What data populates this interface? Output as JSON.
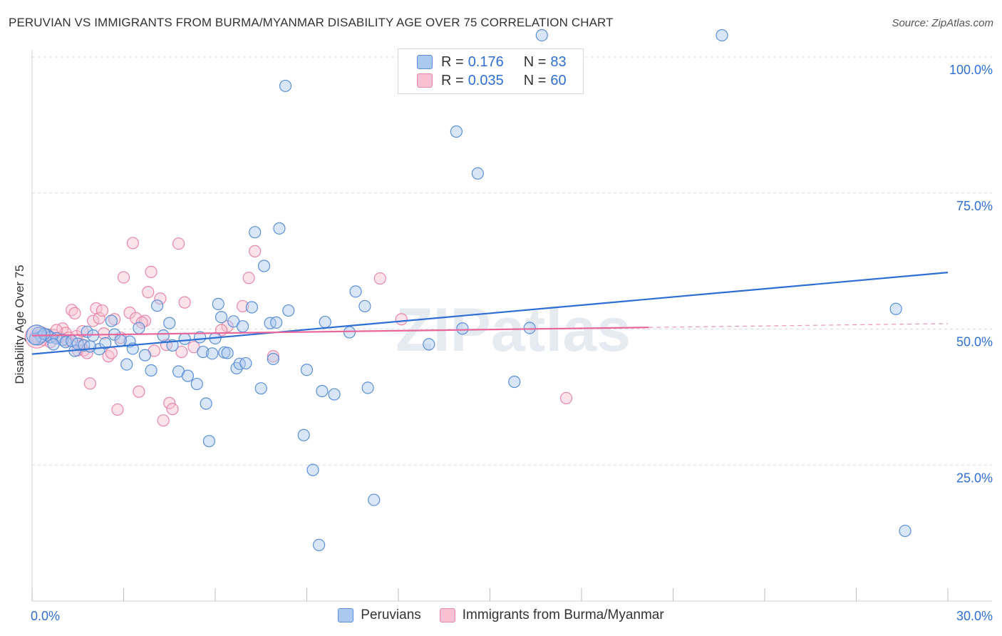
{
  "title": "PERUVIAN VS IMMIGRANTS FROM BURMA/MYANMAR DISABILITY AGE OVER 75 CORRELATION CHART",
  "source": "Source: ZipAtlas.com",
  "watermark": "ZIPatlas",
  "legend": {
    "r_label": "R =",
    "n_label": "N =",
    "rows": [
      {
        "r": "0.176",
        "n": "83",
        "fill": "#aac8f0",
        "stroke": "#5b8fd8"
      },
      {
        "r": "0.035",
        "n": "60",
        "fill": "#f8c0d0",
        "stroke": "#e888a8"
      }
    ]
  },
  "series_labels": [
    "Peruvians",
    "Immigrants from Burma/Myanmar"
  ],
  "chart_data": {
    "type": "scatter",
    "title": "PERUVIAN VS IMMIGRANTS FROM BURMA/MYANMAR DISABILITY AGE OVER 75 CORRELATION CHART",
    "xlabel": "",
    "ylabel": "Disability Age Over 75",
    "xlim": [
      0,
      30
    ],
    "ylim": [
      0,
      105
    ],
    "x_tick_labels": [
      "0.0%",
      "30.0%"
    ],
    "y_tick_labels": [
      "100.0%",
      "75.0%",
      "50.0%",
      "25.0%"
    ],
    "y_ticks": [
      100,
      75,
      50,
      25
    ],
    "grid": true,
    "colors": {
      "blue_fill": "#aac8f0",
      "blue_stroke": "#5b8fd8",
      "blue_line": "#2f6fd4",
      "pink_fill": "#f8c0d0",
      "pink_stroke": "#e888a8",
      "pink_line": "#e8679a",
      "tick_text": "#2f6fd4"
    },
    "series": [
      {
        "name": "Peruvians",
        "trend": {
          "x": [
            0,
            30
          ],
          "y": [
            45.4,
            60.4
          ]
        },
        "points": [
          [
            0.2,
            49.3
          ],
          [
            0.3,
            48.6
          ],
          [
            0.5,
            48.9
          ],
          [
            0.6,
            48.5
          ],
          [
            0.8,
            48.3
          ],
          [
            1.0,
            48.0
          ],
          [
            1.1,
            47.6
          ],
          [
            1.3,
            47.8
          ],
          [
            1.4,
            46.0
          ],
          [
            1.5,
            47.3
          ],
          [
            1.7,
            47.0
          ],
          [
            1.8,
            49.5
          ],
          [
            2.0,
            48.8
          ],
          [
            2.2,
            46.3
          ],
          [
            2.4,
            47.4
          ],
          [
            2.6,
            51.5
          ],
          [
            2.7,
            49.0
          ],
          [
            3.1,
            43.5
          ],
          [
            3.2,
            47.7
          ],
          [
            3.5,
            50.2
          ],
          [
            3.7,
            45.2
          ],
          [
            3.9,
            42.4
          ],
          [
            4.1,
            54.3
          ],
          [
            4.3,
            48.8
          ],
          [
            4.5,
            51.1
          ],
          [
            4.8,
            42.2
          ],
          [
            5.0,
            48.2
          ],
          [
            5.1,
            41.4
          ],
          [
            5.4,
            39.9
          ],
          [
            5.5,
            48.5
          ],
          [
            5.6,
            45.8
          ],
          [
            5.7,
            36.3
          ],
          [
            5.8,
            29.4
          ],
          [
            5.9,
            45.5
          ],
          [
            6.1,
            54.6
          ],
          [
            6.2,
            52.2
          ],
          [
            6.3,
            45.7
          ],
          [
            6.4,
            45.6
          ],
          [
            6.6,
            51.4
          ],
          [
            6.7,
            42.8
          ],
          [
            6.8,
            43.6
          ],
          [
            6.9,
            50.5
          ],
          [
            7.0,
            43.7
          ],
          [
            7.2,
            54.0
          ],
          [
            7.3,
            67.8
          ],
          [
            7.5,
            39.1
          ],
          [
            7.6,
            61.6
          ],
          [
            7.8,
            51.1
          ],
          [
            7.9,
            44.5
          ],
          [
            8.0,
            51.2
          ],
          [
            8.1,
            68.5
          ],
          [
            8.3,
            94.7
          ],
          [
            8.4,
            53.4
          ],
          [
            8.9,
            30.5
          ],
          [
            9.0,
            42.5
          ],
          [
            9.2,
            24.1
          ],
          [
            9.4,
            10.3
          ],
          [
            9.5,
            38.6
          ],
          [
            9.6,
            51.3
          ],
          [
            9.9,
            38.0
          ],
          [
            10.4,
            49.4
          ],
          [
            10.6,
            56.9
          ],
          [
            10.9,
            54.2
          ],
          [
            11.0,
            39.2
          ],
          [
            11.2,
            18.6
          ],
          [
            13.0,
            47.2
          ],
          [
            13.9,
            86.3
          ],
          [
            14.1,
            50.1
          ],
          [
            14.6,
            78.6
          ],
          [
            15.8,
            40.3
          ],
          [
            16.3,
            50.2
          ],
          [
            16.7,
            104.0
          ],
          [
            22.6,
            104.0
          ],
          [
            28.3,
            53.7
          ],
          [
            28.6,
            12.9
          ],
          [
            0.1,
            48.2
          ],
          [
            0.4,
            49.1
          ],
          [
            1.9,
            46.8
          ],
          [
            2.9,
            47.9
          ],
          [
            0.7,
            47.2
          ],
          [
            3.3,
            46.4
          ],
          [
            6.0,
            48.3
          ],
          [
            4.6,
            47.0
          ]
        ]
      },
      {
        "name": "Immigrants from Burma/Myanmar",
        "trend": {
          "x": [
            0,
            20.2
          ],
          "y": [
            48.8,
            50.3
          ]
        },
        "trend_dashed": {
          "x": [
            20.2,
            30
          ],
          "y": [
            50.3,
            51.0
          ]
        },
        "points": [
          [
            0.1,
            48.6
          ],
          [
            0.2,
            48.1
          ],
          [
            0.3,
            49.4
          ],
          [
            0.5,
            49.0
          ],
          [
            0.7,
            48.9
          ],
          [
            0.9,
            48.5
          ],
          [
            1.0,
            50.1
          ],
          [
            1.1,
            49.3
          ],
          [
            1.2,
            48.4
          ],
          [
            1.3,
            53.5
          ],
          [
            1.4,
            52.9
          ],
          [
            1.5,
            46.1
          ],
          [
            1.6,
            47.2
          ],
          [
            1.7,
            46.1
          ],
          [
            1.8,
            45.6
          ],
          [
            1.9,
            40.0
          ],
          [
            2.0,
            51.5
          ],
          [
            2.1,
            53.8
          ],
          [
            2.2,
            52.0
          ],
          [
            2.3,
            53.4
          ],
          [
            2.5,
            45.0
          ],
          [
            2.6,
            45.6
          ],
          [
            2.7,
            51.8
          ],
          [
            2.8,
            35.2
          ],
          [
            3.0,
            59.5
          ],
          [
            3.2,
            53.0
          ],
          [
            3.3,
            65.8
          ],
          [
            3.4,
            52.0
          ],
          [
            3.5,
            38.5
          ],
          [
            3.7,
            51.5
          ],
          [
            3.8,
            56.8
          ],
          [
            3.9,
            60.5
          ],
          [
            4.0,
            46.0
          ],
          [
            4.2,
            55.6
          ],
          [
            4.3,
            33.2
          ],
          [
            4.4,
            47.1
          ],
          [
            4.5,
            36.4
          ],
          [
            4.6,
            35.3
          ],
          [
            4.8,
            65.7
          ],
          [
            5.0,
            54.9
          ],
          [
            5.3,
            46.7
          ],
          [
            6.4,
            50.5
          ],
          [
            6.9,
            54.2
          ],
          [
            7.1,
            59.4
          ],
          [
            7.3,
            64.3
          ],
          [
            7.9,
            45.0
          ],
          [
            11.4,
            59.3
          ],
          [
            12.1,
            51.8
          ],
          [
            17.5,
            37.3
          ],
          [
            0.4,
            48.0
          ],
          [
            0.6,
            47.6
          ],
          [
            0.8,
            49.8
          ],
          [
            1.15,
            47.9
          ],
          [
            1.45,
            48.7
          ],
          [
            1.65,
            49.6
          ],
          [
            2.35,
            49.2
          ],
          [
            2.9,
            48.4
          ],
          [
            3.6,
            51.2
          ],
          [
            4.9,
            45.8
          ],
          [
            6.2,
            49.8
          ]
        ]
      }
    ]
  }
}
